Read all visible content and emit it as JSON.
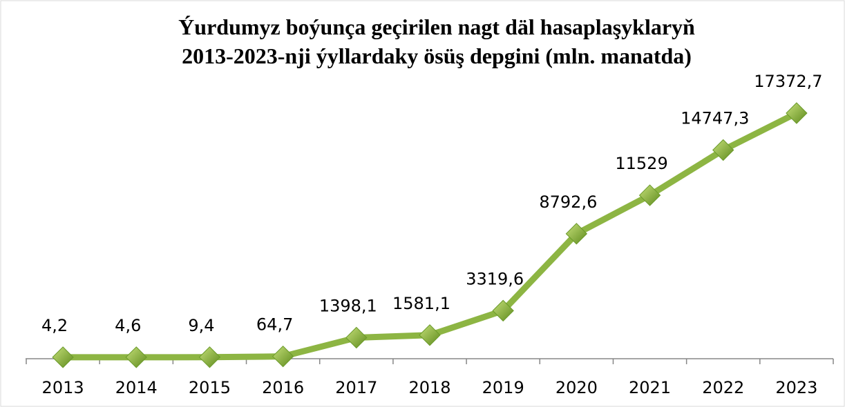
{
  "chart_data": {
    "type": "line",
    "title": [
      "Ýurdumyz boýunça geçirilen nagt däl hasaplaşyklaryň",
      "2013-2023-nji ýyllardaky ösüş depgini (mln. manatda)"
    ],
    "categories": [
      "2013",
      "2014",
      "2015",
      "2016",
      "2017",
      "2018",
      "2019",
      "2020",
      "2021",
      "2022",
      "2023"
    ],
    "values": [
      4.2,
      4.6,
      9.4,
      64.7,
      1398.1,
      1581.1,
      3319.6,
      8792.6,
      11529,
      14747.3,
      17372.7
    ],
    "value_labels": [
      "4,2",
      "4,6",
      "9,4",
      "64,7",
      "1398,1",
      "1581,1",
      "3319,6",
      "8792,6",
      "11529",
      "14747,3",
      "17372,7"
    ],
    "color": "#8db543"
  }
}
